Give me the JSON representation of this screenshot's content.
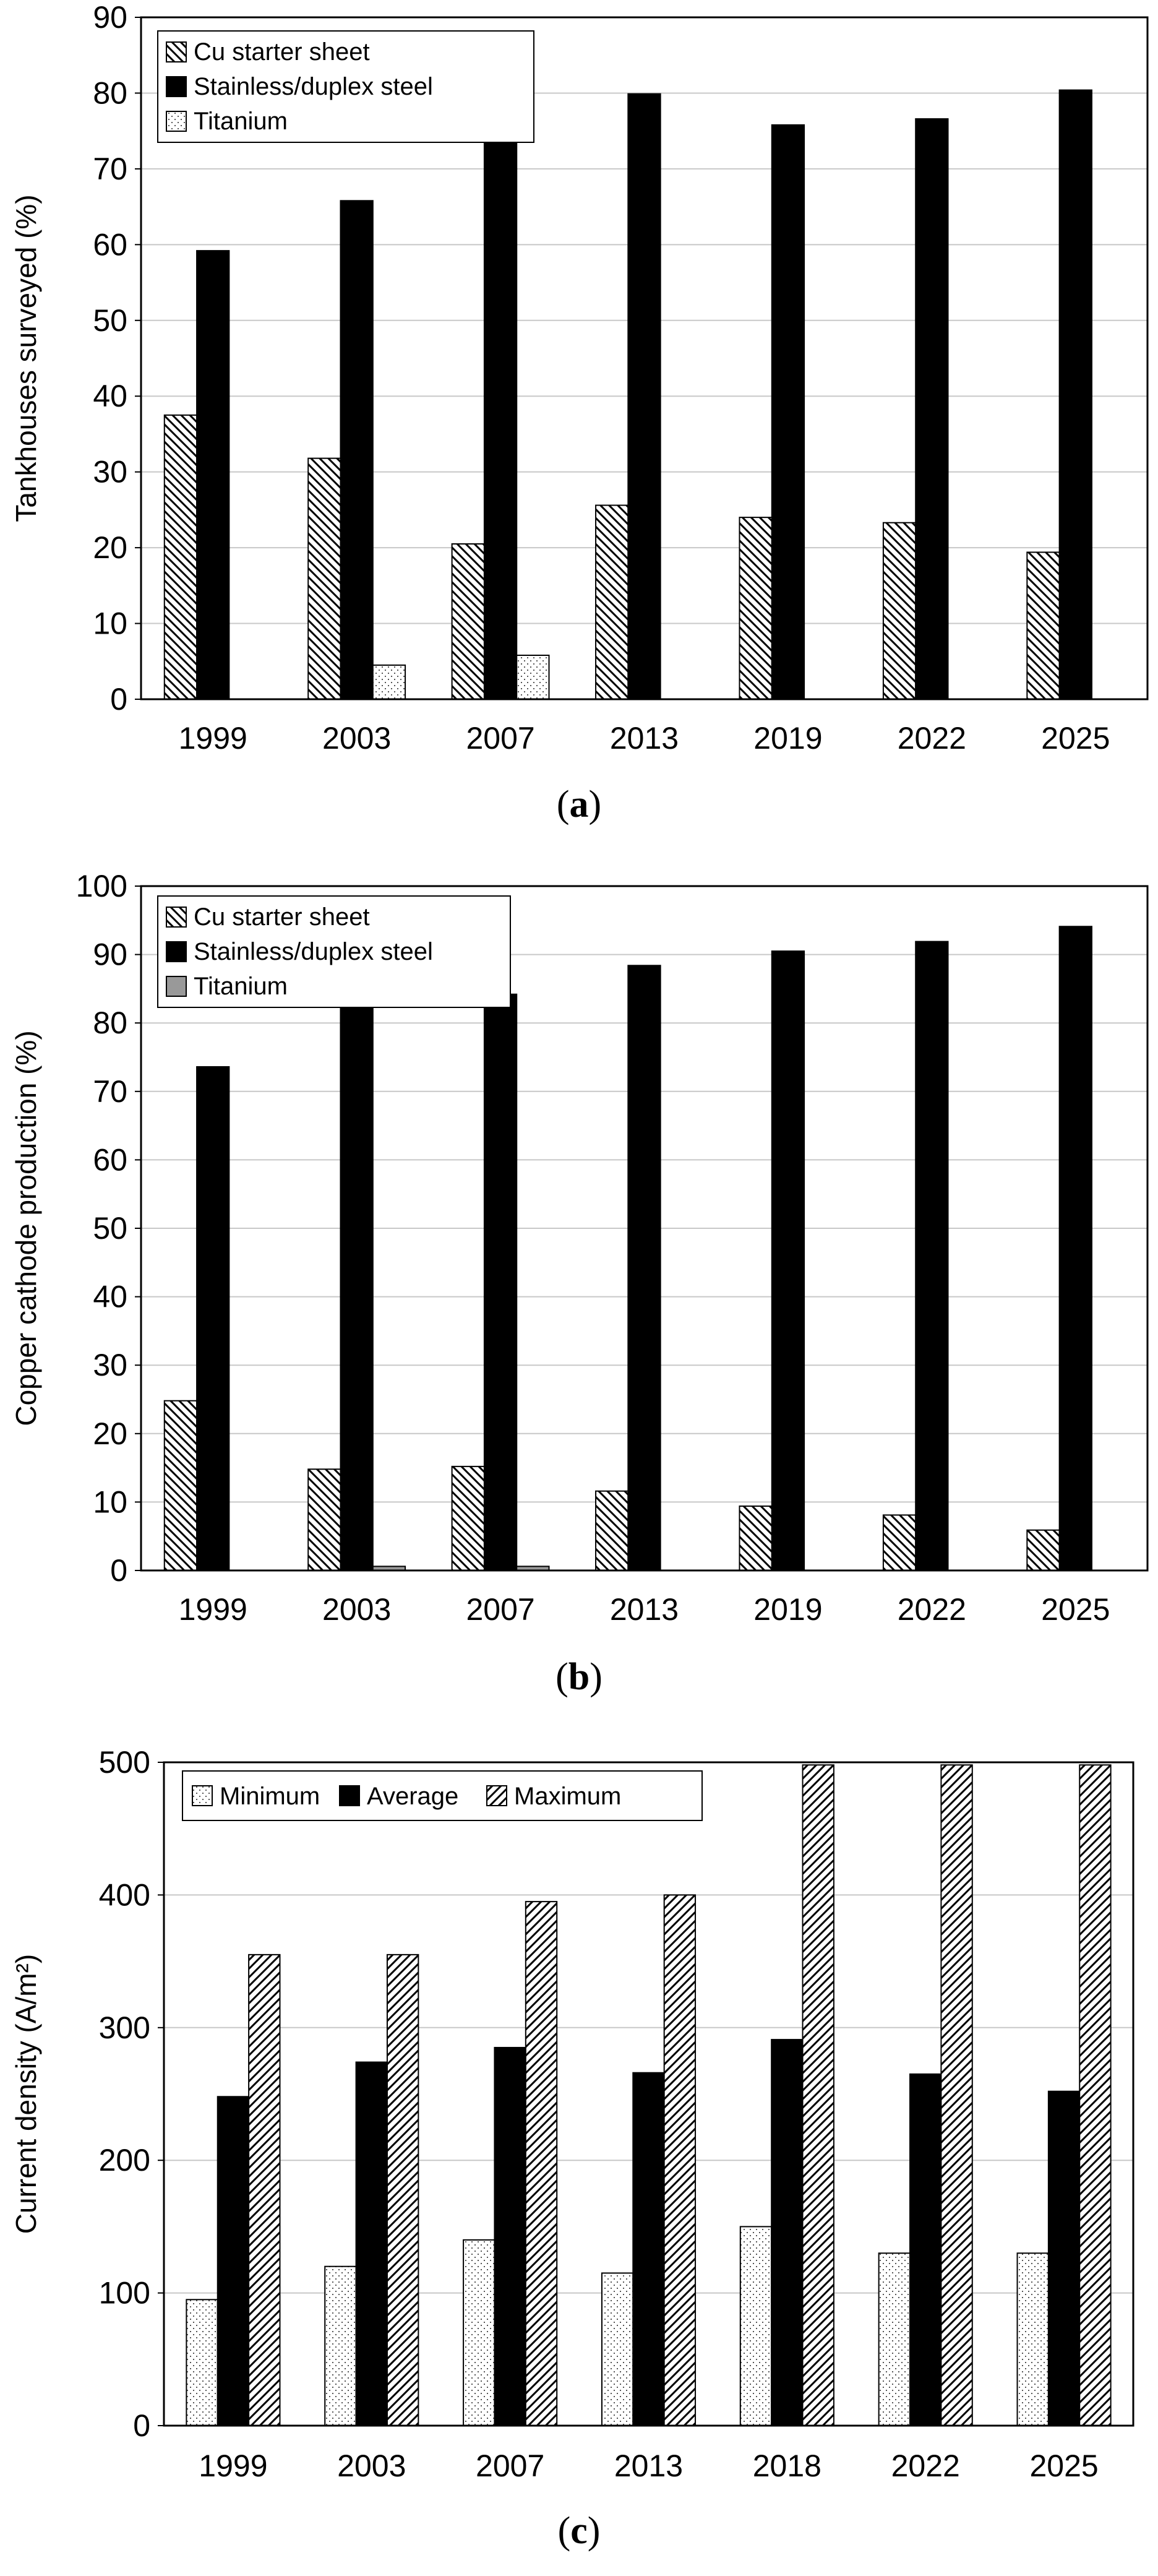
{
  "chart_data": [
    {
      "type": "bar",
      "panel_label": "a",
      "ylabel": "Tankhouses surveyed (%)",
      "xlabel": "",
      "ylim": [
        0,
        90
      ],
      "yticks": [
        0,
        10,
        20,
        30,
        40,
        50,
        60,
        70,
        80,
        90
      ],
      "grid": true,
      "legend_position": "top-left",
      "categories": [
        "1999",
        "2003",
        "2007",
        "2013",
        "2019",
        "2022",
        "2025"
      ],
      "series": [
        {
          "name": "Cu starter sheet",
          "pattern": "diag-back",
          "values": [
            37.5,
            31.8,
            20.5,
            25.6,
            24.0,
            23.3,
            19.4
          ]
        },
        {
          "name": "Stainless/duplex steel",
          "pattern": "solid-black",
          "values": [
            59.2,
            65.8,
            73.4,
            79.9,
            75.8,
            76.6,
            80.4
          ]
        },
        {
          "name": "Titanium",
          "pattern": "dots",
          "values": [
            0,
            4.5,
            5.8,
            0,
            0,
            0,
            0
          ]
        }
      ]
    },
    {
      "type": "bar",
      "panel_label": "b",
      "ylabel": "Copper cathode production (%)",
      "xlabel": "",
      "ylim": [
        0,
        100
      ],
      "yticks": [
        0,
        10,
        20,
        30,
        40,
        50,
        60,
        70,
        80,
        90,
        100
      ],
      "grid": true,
      "legend_position": "top-left",
      "categories": [
        "1999",
        "2003",
        "2007",
        "2013",
        "2019",
        "2022",
        "2025"
      ],
      "series": [
        {
          "name": "Cu starter sheet",
          "pattern": "diag-back",
          "values": [
            24.8,
            14.8,
            15.2,
            11.6,
            9.4,
            8.1,
            5.9
          ]
        },
        {
          "name": "Stainless/duplex steel",
          "pattern": "solid-black",
          "values": [
            73.6,
            86.1,
            84.2,
            88.4,
            90.5,
            91.9,
            94.1
          ]
        },
        {
          "name": "Titanium",
          "pattern": "solid-gray",
          "values": [
            0,
            0.6,
            0.6,
            0,
            0,
            0,
            0
          ]
        }
      ]
    },
    {
      "type": "bar",
      "panel_label": "c",
      "ylabel": "Current density (A/m²)",
      "xlabel": "",
      "ylim": [
        0,
        500
      ],
      "yticks": [
        0,
        100,
        200,
        300,
        400,
        500
      ],
      "grid": true,
      "legend_position": "top-left",
      "categories": [
        "1999",
        "2003",
        "2007",
        "2013",
        "2018",
        "2022",
        "2025"
      ],
      "series": [
        {
          "name": "Minimum",
          "pattern": "dots",
          "values": [
            95,
            120,
            140,
            115,
            150,
            130,
            130
          ]
        },
        {
          "name": "Average",
          "pattern": "solid-black",
          "values": [
            248,
            274,
            285,
            266,
            291,
            265,
            252
          ]
        },
        {
          "name": "Maximum",
          "pattern": "diag-fwd",
          "values": [
            355,
            355,
            395,
            400,
            498,
            498,
            498
          ]
        }
      ]
    }
  ]
}
